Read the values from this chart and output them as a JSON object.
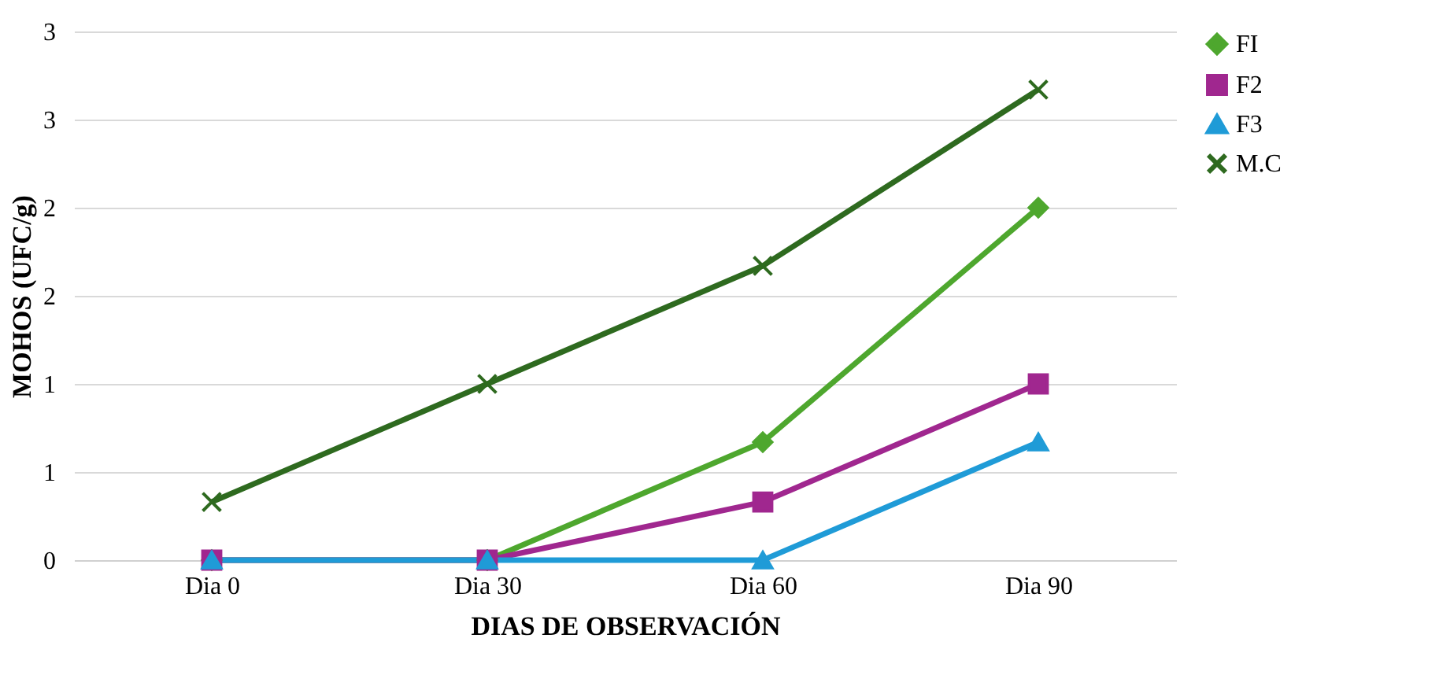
{
  "chart_data": {
    "type": "line",
    "xlabel": "DIAS DE OBSERVACIÓN",
    "ylabel": "MOHOS (UFC/g)",
    "categories": [
      "Dia 0",
      "Dia 30",
      "Dia 60",
      "Dia 90"
    ],
    "series": [
      {
        "name": "FI",
        "color": "#4ea72e",
        "marker": "diamond",
        "values": [
          0,
          0,
          0.67,
          2.0
        ]
      },
      {
        "name": "F2",
        "color": "#a0278f",
        "marker": "square",
        "values": [
          0,
          0,
          0.33,
          1.0
        ]
      },
      {
        "name": "F3",
        "color": "#1f9bd7",
        "marker": "triangle",
        "values": [
          0,
          0,
          0,
          0.67
        ]
      },
      {
        "name": "M.C",
        "color": "#2e6a1f",
        "marker": "cross",
        "values": [
          0.33,
          1.0,
          1.67,
          2.67
        ]
      }
    ],
    "ylim": [
      0,
      3
    ],
    "yticks": [
      0,
      {
        "value": 0.5,
        "label": "1"
      },
      1,
      {
        "value": 1.5,
        "label": "2"
      },
      2,
      {
        "value": 2.5,
        "label": "3"
      },
      3
    ],
    "grid": "y",
    "legend": "right",
    "line_style": "solid"
  }
}
